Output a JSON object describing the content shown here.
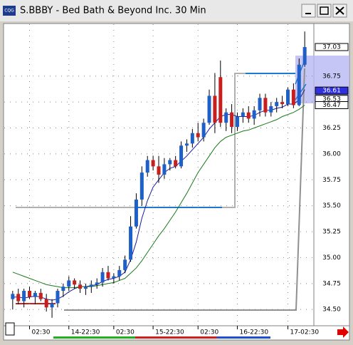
{
  "window": {
    "title": "S.BBBY - Bed Bath & Beyond Inc. 30 Min",
    "icon": "CQG"
  },
  "chart_data": {
    "type": "candlestick",
    "open": [
      34.6,
      34.65,
      34.58,
      34.68,
      34.62,
      34.66,
      34.6,
      34.52,
      34.56,
      34.68,
      34.72,
      34.78,
      34.74,
      34.7,
      34.72,
      34.74,
      34.76,
      34.86,
      34.8,
      34.82,
      34.88,
      34.98,
      35.3,
      35.56,
      35.82,
      35.94,
      35.88,
      35.8,
      35.9,
      35.94,
      35.88,
      36.08,
      36.1,
      36.2,
      36.16,
      36.3,
      36.56,
      36.74,
      36.3,
      36.4,
      36.26,
      36.36,
      36.4,
      36.34,
      36.42,
      36.54,
      36.4,
      36.46,
      36.5,
      36.48,
      36.62,
      36.47,
      36.86
    ],
    "high": [
      34.68,
      34.7,
      34.7,
      34.72,
      34.68,
      34.7,
      34.65,
      34.6,
      34.7,
      34.75,
      34.82,
      34.8,
      34.78,
      34.75,
      34.78,
      34.8,
      34.9,
      34.92,
      34.85,
      34.92,
      35.02,
      35.4,
      35.62,
      35.88,
      35.98,
      35.98,
      35.98,
      35.96,
      35.96,
      35.98,
      36.12,
      36.14,
      36.24,
      36.3,
      36.34,
      36.62,
      36.78,
      36.9,
      36.44,
      36.48,
      36.4,
      36.44,
      36.46,
      36.46,
      36.58,
      36.58,
      36.5,
      36.54,
      36.56,
      36.64,
      36.68,
      36.92,
      37.18
    ],
    "low": [
      34.5,
      34.55,
      34.52,
      34.6,
      34.55,
      34.58,
      34.48,
      34.42,
      34.52,
      34.62,
      34.68,
      34.7,
      34.66,
      34.64,
      34.66,
      34.7,
      34.72,
      34.78,
      34.75,
      34.78,
      34.85,
      34.96,
      35.28,
      35.5,
      35.78,
      35.84,
      35.72,
      35.76,
      35.84,
      35.86,
      35.86,
      36.02,
      36.06,
      36.12,
      36.12,
      36.28,
      36.2,
      36.26,
      36.22,
      36.2,
      36.22,
      36.3,
      36.3,
      36.28,
      36.36,
      36.36,
      36.36,
      36.4,
      36.44,
      36.46,
      36.44,
      36.46,
      36.84
    ],
    "close": [
      34.65,
      34.58,
      34.68,
      34.62,
      34.66,
      34.6,
      34.52,
      34.56,
      34.68,
      34.72,
      34.78,
      34.74,
      34.7,
      34.72,
      34.74,
      34.76,
      34.86,
      34.8,
      34.82,
      34.88,
      34.98,
      35.3,
      35.56,
      35.82,
      35.94,
      35.88,
      35.8,
      35.9,
      35.94,
      35.88,
      36.08,
      36.1,
      36.2,
      36.16,
      36.3,
      36.56,
      36.3,
      36.3,
      36.4,
      36.26,
      36.36,
      36.4,
      36.34,
      36.42,
      36.54,
      36.4,
      36.46,
      36.5,
      36.48,
      36.62,
      36.47,
      36.86,
      37.03
    ],
    "up_color": "#1f5fc8",
    "down_color": "#c81e1e",
    "series": [
      {
        "color": "#1a1aa0",
        "values": [
          34.62,
          34.62,
          34.61,
          34.62,
          34.63,
          34.62,
          34.6,
          34.59,
          34.6,
          34.63,
          34.67,
          34.7,
          34.72,
          34.72,
          34.73,
          34.74,
          34.77,
          34.79,
          34.8,
          34.82,
          34.86,
          34.98,
          35.15,
          35.38,
          35.55,
          35.68,
          35.75,
          35.82,
          35.86,
          35.88,
          35.93,
          35.98,
          36.04,
          36.1,
          36.16,
          36.24,
          36.3,
          36.36,
          36.38,
          36.38,
          36.36,
          36.36,
          36.36,
          36.37,
          36.4,
          36.42,
          36.42,
          36.44,
          36.45,
          36.48,
          36.48,
          36.52,
          36.62
        ]
      },
      {
        "color": "#1a7a1a",
        "values": [
          34.86,
          34.84,
          34.82,
          34.8,
          34.78,
          34.76,
          34.74,
          34.73,
          34.72,
          34.71,
          34.71,
          34.71,
          34.72,
          34.72,
          34.72,
          34.73,
          34.74,
          34.75,
          34.76,
          34.78,
          34.8,
          34.85,
          34.9,
          34.97,
          35.05,
          35.13,
          35.21,
          35.28,
          35.36,
          35.44,
          35.53,
          35.62,
          35.72,
          35.82,
          35.9,
          35.98,
          36.06,
          36.12,
          36.16,
          36.18,
          36.2,
          36.22,
          36.23,
          36.25,
          36.27,
          36.29,
          36.31,
          36.33,
          36.36,
          36.38,
          36.4,
          36.43,
          36.47
        ]
      }
    ],
    "ylim": [
      34.35,
      37.25
    ],
    "yticks": [
      {
        "value": 34.5,
        "label": "34.50"
      },
      {
        "value": 34.75,
        "label": "34.75"
      },
      {
        "value": 35,
        "label": "35.00"
      },
      {
        "value": 35.25,
        "label": "35.25"
      },
      {
        "value": 35.5,
        "label": "35.50"
      },
      {
        "value": 35.75,
        "label": "35.75"
      },
      {
        "value": 36,
        "label": "36.00"
      },
      {
        "value": 36.25,
        "label": "36.25"
      },
      {
        "value": 36.5,
        "label": "36.50"
      },
      {
        "value": 36.75,
        "label": "36.75"
      }
    ],
    "xlim": [
      -1.5,
      53.5
    ],
    "xticks": [
      {
        "value": 3,
        "label": "02:30"
      },
      {
        "value": 10,
        "label": "14-22:30"
      },
      {
        "value": 18,
        "label": "02:30"
      },
      {
        "value": 25,
        "label": "15-22:30"
      },
      {
        "value": 33,
        "label": "02:30"
      },
      {
        "value": 40,
        "label": "16-22:30"
      },
      {
        "value": 49,
        "label": "17-02:30"
      }
    ],
    "price_markers": [
      {
        "value": 37.03,
        "label": "37.03"
      },
      {
        "value": 36.61,
        "label": "36.61"
      },
      {
        "value": 36.53,
        "label": "36.53"
      },
      {
        "value": 36.47,
        "label": "36.47"
      }
    ],
    "grid": true
  }
}
